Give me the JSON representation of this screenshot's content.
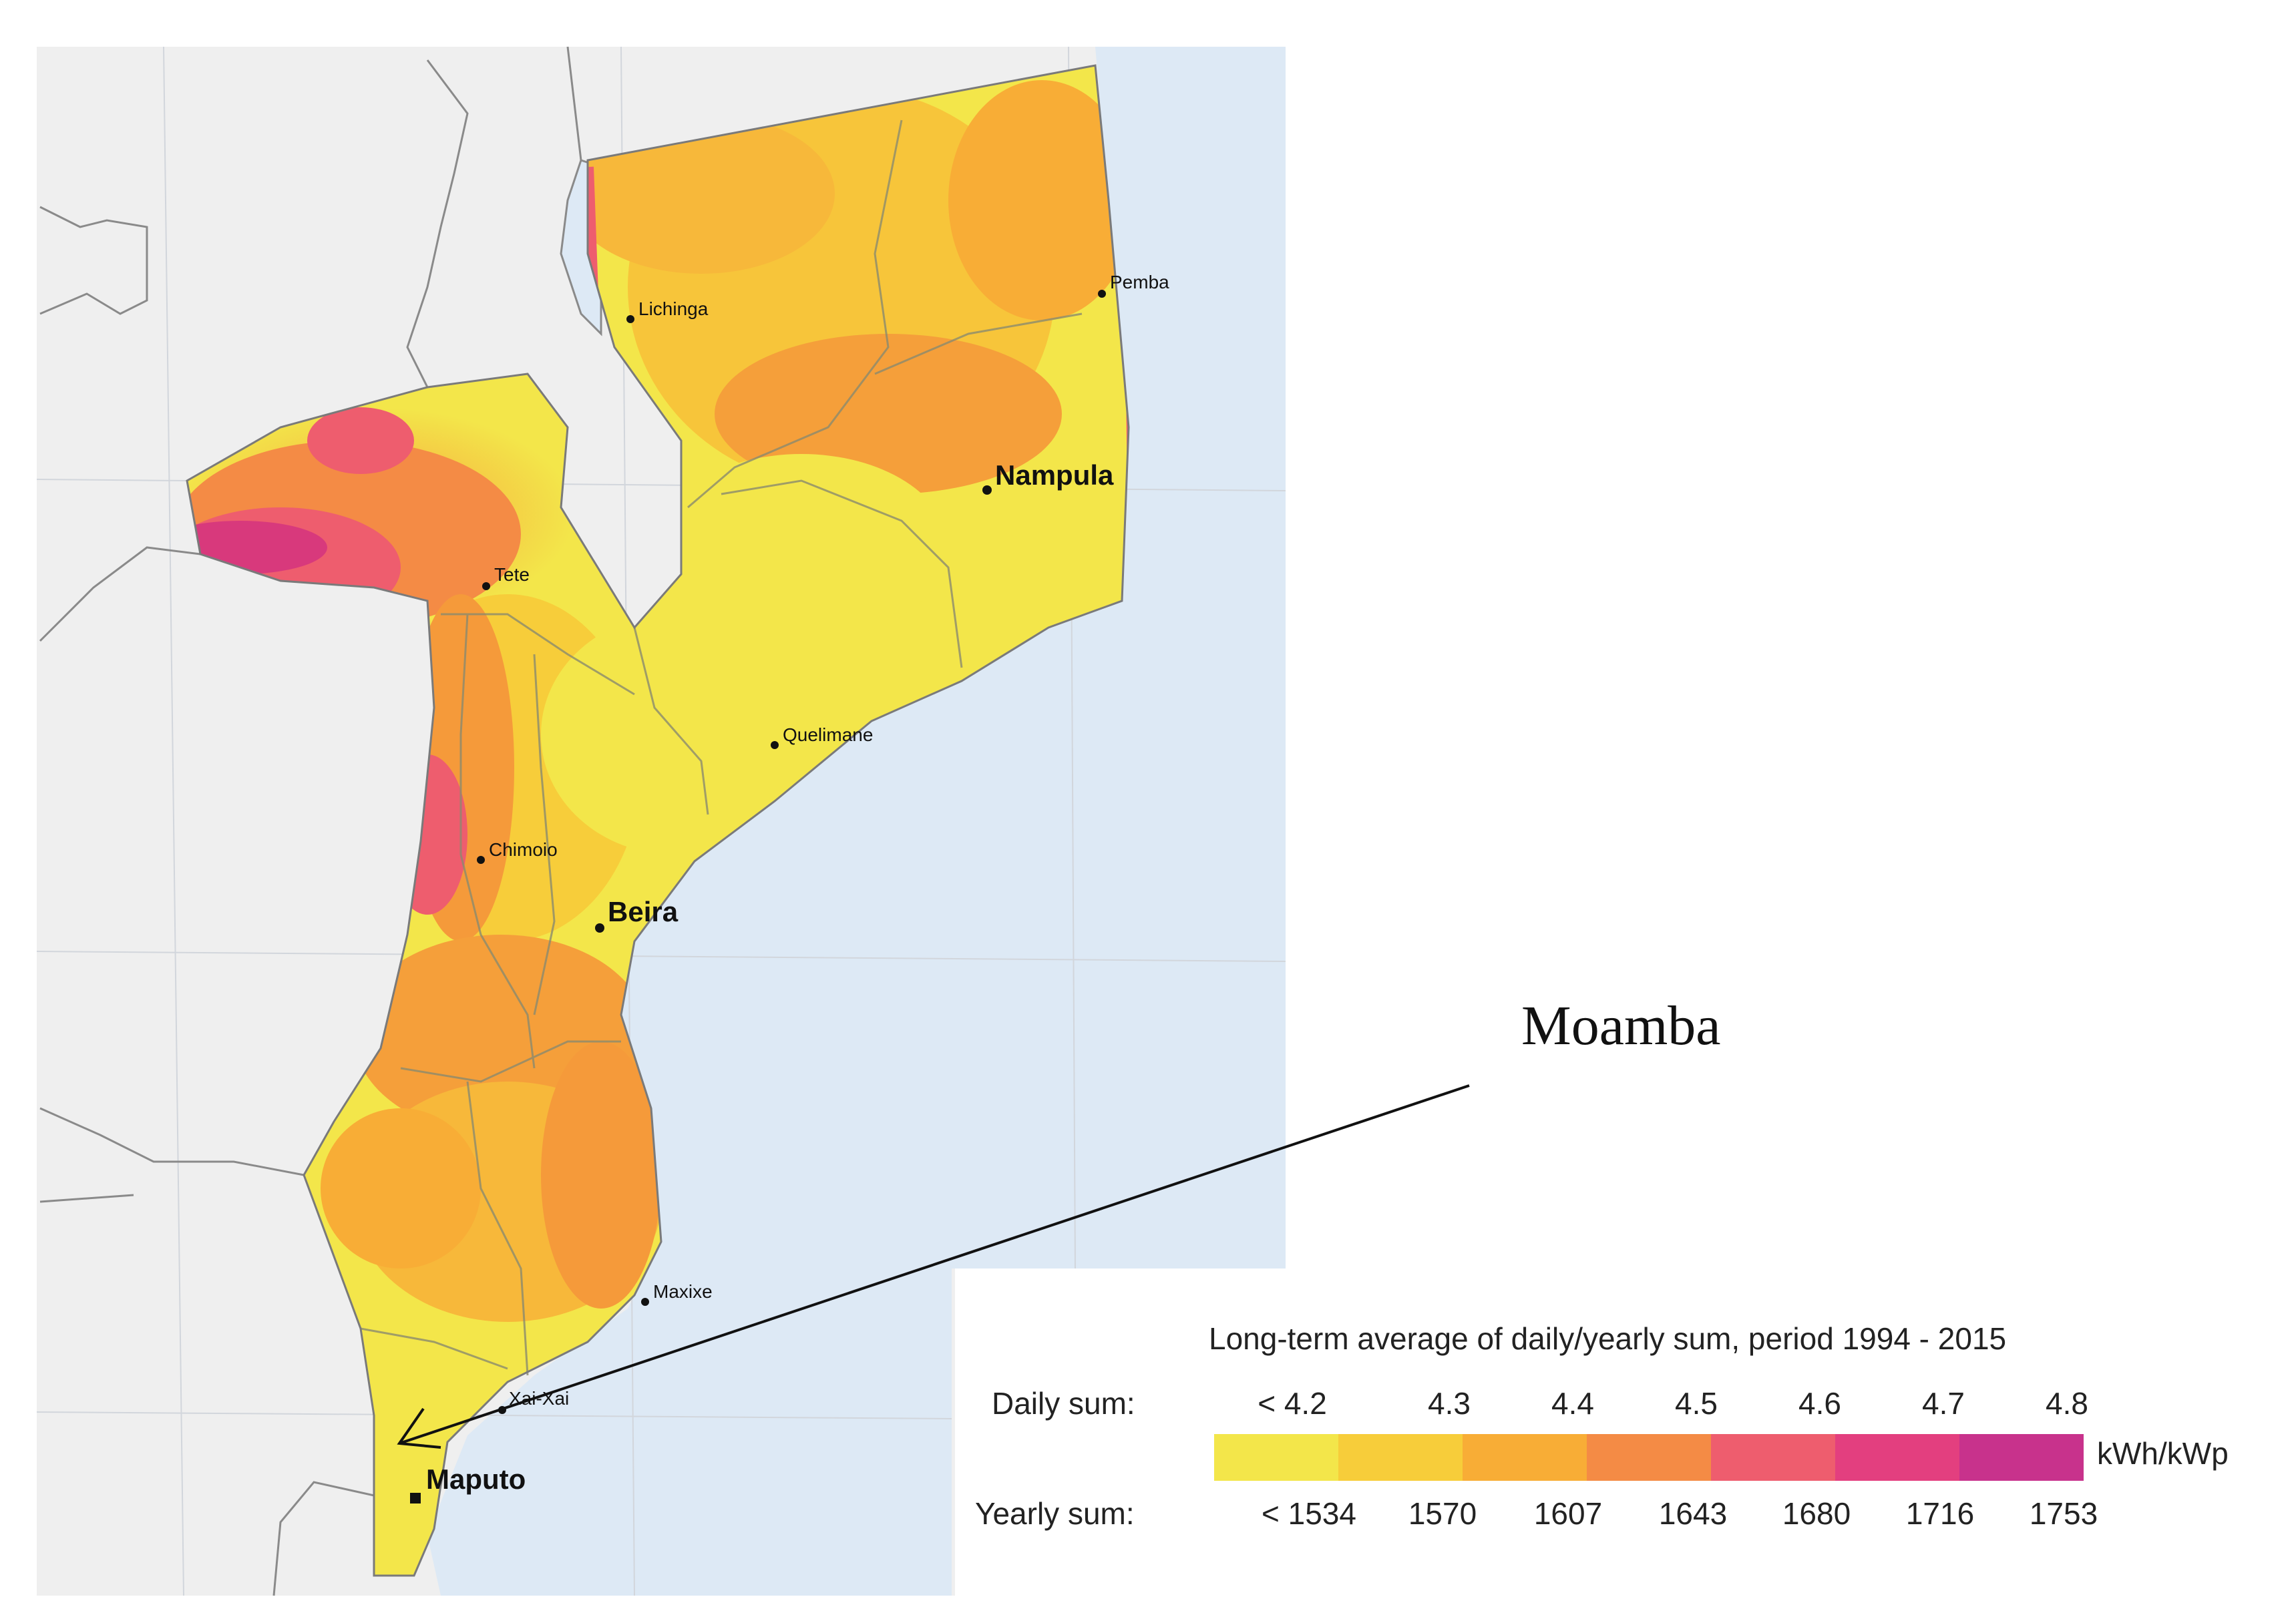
{
  "cities": [
    {
      "id": "lichinga",
      "label": "Lichinga",
      "size": "small"
    },
    {
      "id": "pemba",
      "label": "Pemba",
      "size": "small"
    },
    {
      "id": "nampula",
      "label": "Nampula",
      "size": "large"
    },
    {
      "id": "tete",
      "label": "Tete",
      "size": "small"
    },
    {
      "id": "quelimane",
      "label": "Quelimane",
      "size": "small"
    },
    {
      "id": "chimoio",
      "label": "Chimoio",
      "size": "small"
    },
    {
      "id": "beira",
      "label": "Beira",
      "size": "large"
    },
    {
      "id": "maxixe",
      "label": "Maxixe",
      "size": "small"
    },
    {
      "id": "xai-xai",
      "label": "Xai-Xai",
      "size": "small"
    },
    {
      "id": "maputo",
      "label": "Maputo",
      "size": "large"
    }
  ],
  "annotation": {
    "label": "Moamba"
  },
  "legend": {
    "title": "Long-term average of daily/yearly sum, period 1994 - 2015",
    "daily_label": "Daily sum:",
    "yearly_label": "Yearly sum:",
    "daily_ticks": [
      "< 4.2",
      "4.3",
      "4.4",
      "4.5",
      "4.6",
      "4.7",
      "4.8"
    ],
    "yearly_ticks": [
      "< 1534",
      "1570",
      "1607",
      "1643",
      "1680",
      "1716",
      "1753"
    ],
    "unit": "kWh/kWp",
    "colors": [
      "#f3e64a",
      "#f7cd3a",
      "#f8ad36",
      "#f48b45",
      "#ee5d6e",
      "#e33f7f",
      "#c8328c"
    ]
  },
  "map_colors": {
    "ocean": "#dde9f5",
    "land_background": "#efefef",
    "border": "#8a8a8a"
  }
}
